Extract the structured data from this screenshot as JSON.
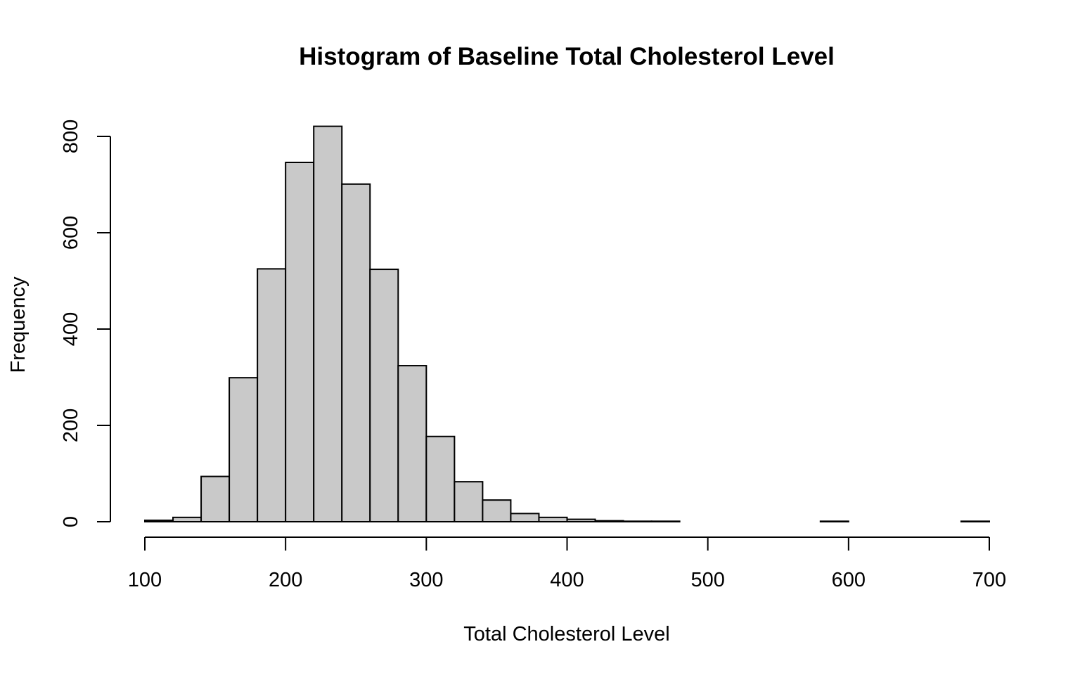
{
  "chart_data": {
    "type": "bar",
    "title": "Histogram of Baseline Total Cholesterol Level",
    "xlabel": "Total Cholesterol Level",
    "ylabel": "Frequency",
    "xlim": [
      100,
      700
    ],
    "ylim": [
      0,
      800
    ],
    "x_ticks": [
      "100",
      "200",
      "300",
      "400",
      "500",
      "600",
      "700"
    ],
    "y_ticks": [
      "0",
      "200",
      "400",
      "600",
      "800"
    ],
    "bin_width": 20,
    "bins": [
      {
        "start": 100,
        "end": 120,
        "count": 3
      },
      {
        "start": 120,
        "end": 140,
        "count": 9
      },
      {
        "start": 140,
        "end": 160,
        "count": 94
      },
      {
        "start": 160,
        "end": 180,
        "count": 299
      },
      {
        "start": 180,
        "end": 200,
        "count": 525
      },
      {
        "start": 200,
        "end": 220,
        "count": 746
      },
      {
        "start": 220,
        "end": 240,
        "count": 821
      },
      {
        "start": 240,
        "end": 260,
        "count": 701
      },
      {
        "start": 260,
        "end": 280,
        "count": 524
      },
      {
        "start": 280,
        "end": 300,
        "count": 324
      },
      {
        "start": 300,
        "end": 320,
        "count": 177
      },
      {
        "start": 320,
        "end": 340,
        "count": 83
      },
      {
        "start": 340,
        "end": 360,
        "count": 45
      },
      {
        "start": 360,
        "end": 380,
        "count": 17
      },
      {
        "start": 380,
        "end": 400,
        "count": 9
      },
      {
        "start": 400,
        "end": 420,
        "count": 5
      },
      {
        "start": 420,
        "end": 440,
        "count": 2
      },
      {
        "start": 440,
        "end": 460,
        "count": 1
      },
      {
        "start": 460,
        "end": 480,
        "count": 1
      },
      {
        "start": 480,
        "end": 500,
        "count": 0
      },
      {
        "start": 500,
        "end": 520,
        "count": 0
      },
      {
        "start": 520,
        "end": 540,
        "count": 0
      },
      {
        "start": 540,
        "end": 560,
        "count": 0
      },
      {
        "start": 560,
        "end": 580,
        "count": 0
      },
      {
        "start": 580,
        "end": 600,
        "count": 1
      },
      {
        "start": 600,
        "end": 620,
        "count": 0
      },
      {
        "start": 620,
        "end": 640,
        "count": 0
      },
      {
        "start": 640,
        "end": 660,
        "count": 0
      },
      {
        "start": 660,
        "end": 680,
        "count": 0
      },
      {
        "start": 680,
        "end": 700,
        "count": 1
      }
    ],
    "colors": {
      "bar_fill": "#c9c9c9",
      "bar_stroke": "#000000"
    },
    "grid": false,
    "legend": "none"
  }
}
